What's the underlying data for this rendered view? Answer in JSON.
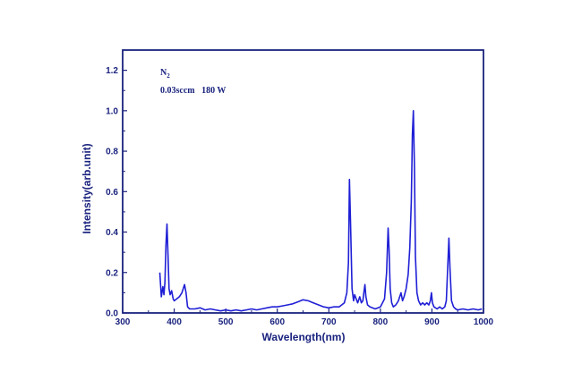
{
  "chart_data": {
    "type": "line",
    "title": "",
    "xlabel": "Wavelength(nm)",
    "ylabel": "Intensity(arb.unit)",
    "xlim": [
      300,
      1000
    ],
    "ylim": [
      0,
      1.3
    ],
    "xticks": [
      300,
      400,
      500,
      600,
      700,
      800,
      900,
      1000
    ],
    "yticks": [
      0.0,
      0.2,
      0.4,
      0.6,
      0.8,
      1.0,
      1.2
    ],
    "xtick_labels": [
      "300",
      "400",
      "500",
      "600",
      "700",
      "800",
      "900",
      "1000"
    ],
    "ytick_labels": [
      "0.0",
      "0.2",
      "0.4",
      "0.6",
      "0.8",
      "1.0",
      "1.2"
    ],
    "grid": false,
    "legend": "none",
    "annotations": {
      "gas": "N",
      "gas_subscript": "2",
      "conditions": "0.03sccm   180 W"
    },
    "colors": {
      "line": "#1f1fd6",
      "axis": "#1a237e",
      "text": "#1a237e"
    },
    "series": [
      {
        "x": [
          372,
          375,
          378,
          380,
          382,
          384,
          386,
          388,
          390,
          392,
          395,
          398,
          400,
          405,
          410,
          415,
          420,
          423,
          426,
          430,
          440,
          450,
          460,
          470,
          480,
          490,
          500,
          510,
          520,
          530,
          540,
          550,
          560,
          570,
          580,
          590,
          600,
          610,
          620,
          630,
          640,
          650,
          660,
          670,
          680,
          690,
          700,
          710,
          720,
          730,
          735,
          738,
          740,
          742,
          745,
          748,
          750,
          753,
          756,
          760,
          763,
          766,
          768,
          770,
          772,
          775,
          780,
          790,
          800,
          808,
          812,
          815,
          817,
          819,
          822,
          825,
          830,
          835,
          840,
          843,
          846,
          850,
          854,
          857,
          860,
          862,
          864,
          866,
          868,
          871,
          874,
          878,
          882,
          886,
          890,
          894,
          897,
          899,
          901,
          904,
          910,
          915,
          920,
          925,
          928,
          931,
          933,
          935,
          938,
          942,
          946,
          950,
          960,
          970,
          980,
          990,
          997
        ],
        "y": [
          0.2,
          0.08,
          0.13,
          0.09,
          0.15,
          0.34,
          0.44,
          0.28,
          0.12,
          0.09,
          0.11,
          0.07,
          0.06,
          0.07,
          0.08,
          0.1,
          0.14,
          0.1,
          0.03,
          0.02,
          0.02,
          0.025,
          0.015,
          0.02,
          0.015,
          0.01,
          0.015,
          0.01,
          0.015,
          0.01,
          0.015,
          0.02,
          0.015,
          0.02,
          0.025,
          0.03,
          0.03,
          0.035,
          0.04,
          0.045,
          0.055,
          0.065,
          0.06,
          0.05,
          0.04,
          0.03,
          0.025,
          0.03,
          0.03,
          0.05,
          0.1,
          0.25,
          0.66,
          0.45,
          0.12,
          0.06,
          0.09,
          0.07,
          0.05,
          0.08,
          0.05,
          0.06,
          0.1,
          0.14,
          0.08,
          0.04,
          0.03,
          0.02,
          0.03,
          0.07,
          0.2,
          0.42,
          0.31,
          0.12,
          0.05,
          0.03,
          0.04,
          0.06,
          0.1,
          0.06,
          0.08,
          0.12,
          0.19,
          0.32,
          0.55,
          0.88,
          1.0,
          0.72,
          0.28,
          0.1,
          0.06,
          0.04,
          0.05,
          0.04,
          0.05,
          0.04,
          0.06,
          0.1,
          0.05,
          0.03,
          0.02,
          0.03,
          0.02,
          0.03,
          0.06,
          0.25,
          0.37,
          0.22,
          0.06,
          0.03,
          0.02,
          0.015,
          0.02,
          0.015,
          0.02,
          0.015,
          0.02
        ]
      }
    ]
  }
}
